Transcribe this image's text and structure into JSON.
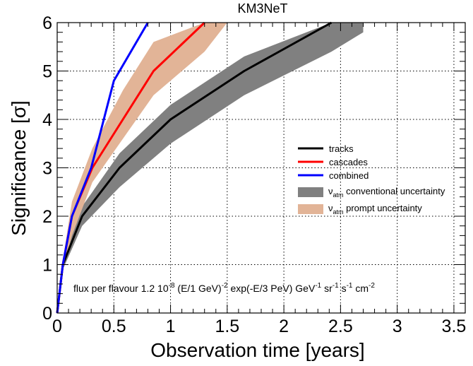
{
  "chart_data": {
    "type": "line",
    "title": "KM3NeT",
    "xlabel": "Observation time [years]",
    "ylabel": "Significance [σ]",
    "xlim": [
      0,
      3.6
    ],
    "ylim": [
      0,
      6
    ],
    "grid": true,
    "legend_position": "right",
    "x_ticks": [
      "0",
      "0.5",
      "1",
      "1.5",
      "2",
      "2.5",
      "3",
      "3.5"
    ],
    "y_ticks": [
      "0",
      "1",
      "2",
      "3",
      "4",
      "5",
      "6"
    ],
    "series": [
      {
        "name": "tracks",
        "color": "#000000",
        "x": [
          0,
          0.05,
          0.22,
          0.55,
          1.0,
          1.65,
          2.42
        ],
        "y": [
          0,
          1.0,
          2.0,
          3.0,
          4.0,
          5.0,
          6.0
        ]
      },
      {
        "name": "cascades",
        "color": "#ff0000",
        "x": [
          0,
          0.05,
          0.13,
          0.31,
          0.58,
          0.85,
          1.3
        ],
        "y": [
          0,
          1.0,
          2.0,
          3.0,
          4.0,
          5.0,
          6.0
        ]
      },
      {
        "name": "combined",
        "color": "#0000ff",
        "x": [
          0,
          0.05,
          0.13,
          0.3,
          0.5,
          0.8
        ],
        "y": [
          0,
          1.0,
          2.0,
          3.0,
          4.8,
          6.0
        ]
      }
    ],
    "bands": [
      {
        "name": "conventional uncertainty",
        "legend_prefix": "ν",
        "legend_sub": "atm",
        "color": "#808080",
        "x": [
          0,
          0.05,
          0.22,
          0.55,
          1.0,
          1.65,
          2.42,
          2.7
        ],
        "lower": [
          0,
          0.9,
          1.8,
          2.6,
          3.5,
          4.5,
          5.4,
          5.8
        ],
        "upper": [
          0,
          1.1,
          2.2,
          3.3,
          4.3,
          5.3,
          6.0,
          6.0
        ]
      },
      {
        "name": "prompt uncertainty",
        "legend_prefix": "ν",
        "legend_sub": "atm",
        "color": "#e2b497",
        "x": [
          0,
          0.05,
          0.13,
          0.31,
          0.58,
          0.85,
          1.3,
          1.5
        ],
        "lower": [
          0,
          0.9,
          1.6,
          2.7,
          3.6,
          4.5,
          5.4,
          6.0
        ],
        "upper": [
          0,
          1.1,
          2.3,
          3.4,
          4.6,
          5.6,
          6.0,
          6.0
        ]
      }
    ],
    "annotation": {
      "prefix": "flux per flavour 1.2 10",
      "exp1": "-8",
      "mid1": " (E/1 GeV)",
      "exp2": "-2",
      "mid2": " exp(-E/3 PeV) GeV",
      "exp3": "-1",
      "mid3": " sr",
      "exp4": "-1",
      "mid4": " s",
      "exp5": "-1",
      "mid5": " cm",
      "exp6": "-2"
    }
  }
}
